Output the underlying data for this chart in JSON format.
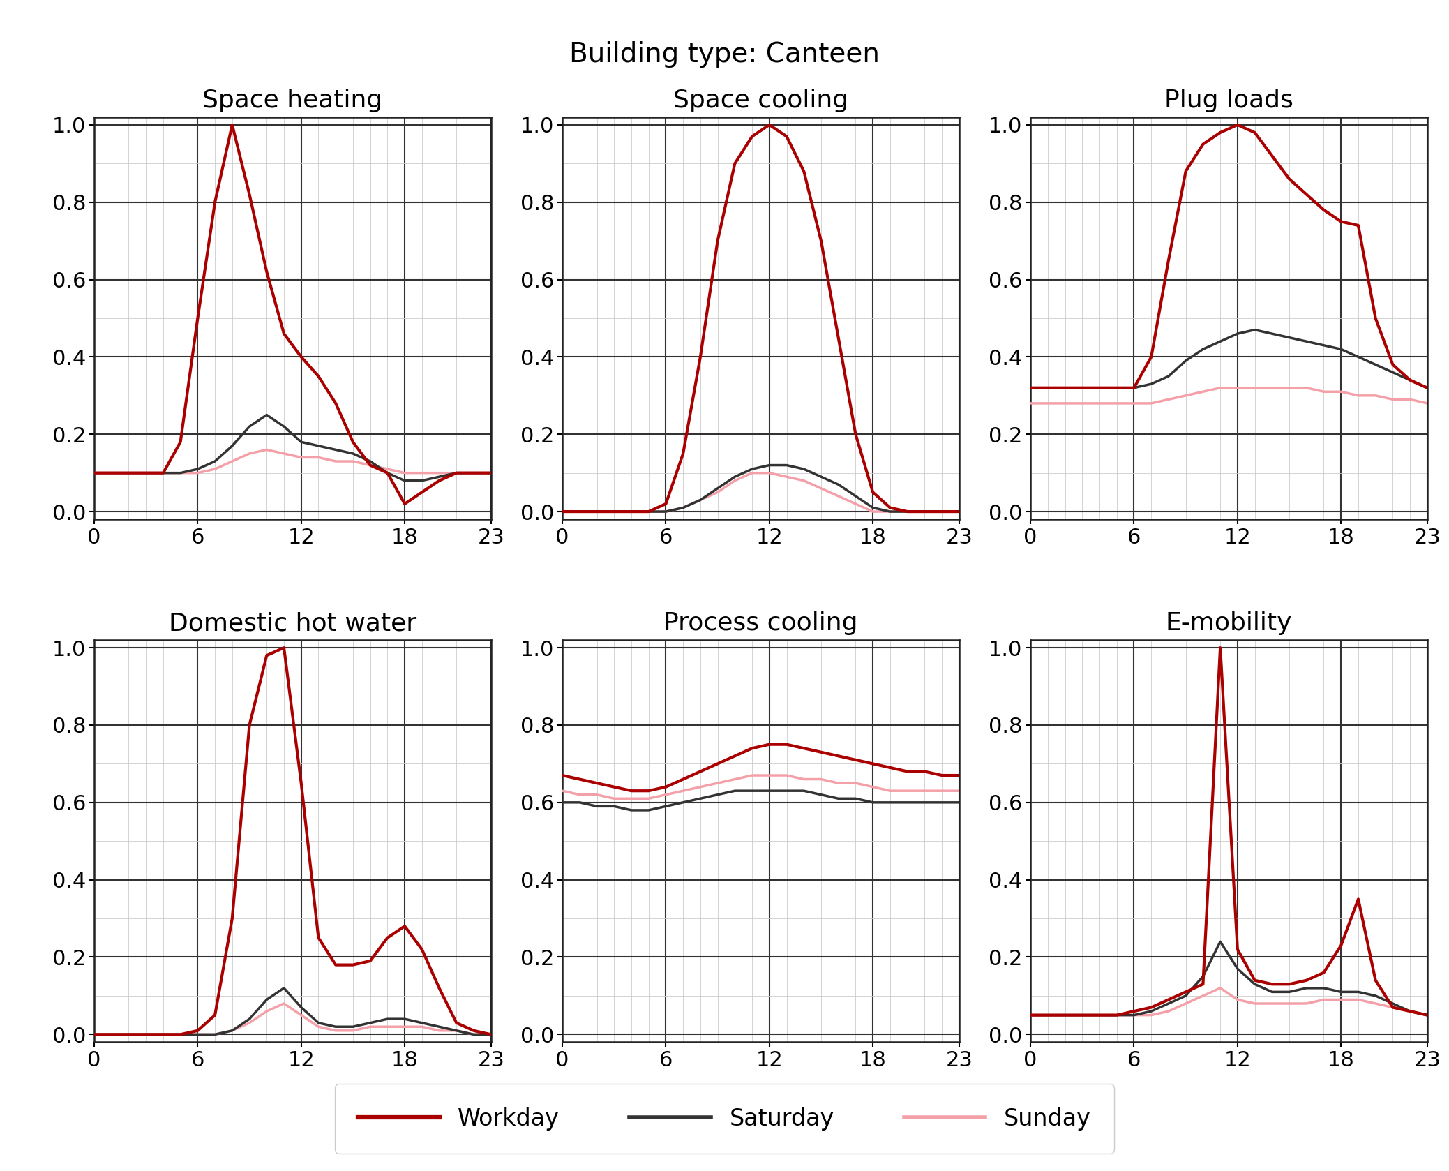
{
  "title": "Building type: Canteen",
  "subplots": [
    {
      "title": "Space heating",
      "workday": [
        0.1,
        0.1,
        0.1,
        0.1,
        0.1,
        0.18,
        0.5,
        0.8,
        1.0,
        0.82,
        0.62,
        0.46,
        0.4,
        0.35,
        0.28,
        0.18,
        0.12,
        0.1,
        0.02,
        0.05,
        0.08,
        0.1,
        0.1,
        0.1
      ],
      "saturday": [
        0.1,
        0.1,
        0.1,
        0.1,
        0.1,
        0.1,
        0.11,
        0.13,
        0.17,
        0.22,
        0.25,
        0.22,
        0.18,
        0.17,
        0.16,
        0.15,
        0.13,
        0.1,
        0.08,
        0.08,
        0.09,
        0.1,
        0.1,
        0.1
      ],
      "sunday": [
        0.1,
        0.1,
        0.1,
        0.1,
        0.1,
        0.1,
        0.1,
        0.11,
        0.13,
        0.15,
        0.16,
        0.15,
        0.14,
        0.14,
        0.13,
        0.13,
        0.12,
        0.11,
        0.1,
        0.1,
        0.1,
        0.1,
        0.1,
        0.1
      ]
    },
    {
      "title": "Space cooling",
      "workday": [
        0.0,
        0.0,
        0.0,
        0.0,
        0.0,
        0.0,
        0.02,
        0.15,
        0.4,
        0.7,
        0.9,
        0.97,
        1.0,
        0.97,
        0.88,
        0.7,
        0.45,
        0.2,
        0.05,
        0.01,
        0.0,
        0.0,
        0.0,
        0.0
      ],
      "saturday": [
        0.0,
        0.0,
        0.0,
        0.0,
        0.0,
        0.0,
        0.0,
        0.01,
        0.03,
        0.06,
        0.09,
        0.11,
        0.12,
        0.12,
        0.11,
        0.09,
        0.07,
        0.04,
        0.01,
        0.0,
        0.0,
        0.0,
        0.0,
        0.0
      ],
      "sunday": [
        0.0,
        0.0,
        0.0,
        0.0,
        0.0,
        0.0,
        0.0,
        0.01,
        0.03,
        0.05,
        0.08,
        0.1,
        0.1,
        0.09,
        0.08,
        0.06,
        0.04,
        0.02,
        0.0,
        0.0,
        0.0,
        0.0,
        0.0,
        0.0
      ]
    },
    {
      "title": "Plug loads",
      "workday": [
        0.32,
        0.32,
        0.32,
        0.32,
        0.32,
        0.32,
        0.32,
        0.4,
        0.65,
        0.88,
        0.95,
        0.98,
        1.0,
        0.98,
        0.92,
        0.86,
        0.82,
        0.78,
        0.75,
        0.74,
        0.5,
        0.38,
        0.34,
        0.32
      ],
      "saturday": [
        0.32,
        0.32,
        0.32,
        0.32,
        0.32,
        0.32,
        0.32,
        0.33,
        0.35,
        0.39,
        0.42,
        0.44,
        0.46,
        0.47,
        0.46,
        0.45,
        0.44,
        0.43,
        0.42,
        0.4,
        0.38,
        0.36,
        0.34,
        0.32
      ],
      "sunday": [
        0.28,
        0.28,
        0.28,
        0.28,
        0.28,
        0.28,
        0.28,
        0.28,
        0.29,
        0.3,
        0.31,
        0.32,
        0.32,
        0.32,
        0.32,
        0.32,
        0.32,
        0.31,
        0.31,
        0.3,
        0.3,
        0.29,
        0.29,
        0.28
      ]
    },
    {
      "title": "Domestic hot water",
      "workday": [
        0.0,
        0.0,
        0.0,
        0.0,
        0.0,
        0.0,
        0.01,
        0.05,
        0.3,
        0.8,
        0.98,
        1.0,
        0.65,
        0.25,
        0.18,
        0.18,
        0.19,
        0.25,
        0.28,
        0.22,
        0.12,
        0.03,
        0.01,
        0.0
      ],
      "saturday": [
        0.0,
        0.0,
        0.0,
        0.0,
        0.0,
        0.0,
        0.0,
        0.0,
        0.01,
        0.04,
        0.09,
        0.12,
        0.07,
        0.03,
        0.02,
        0.02,
        0.03,
        0.04,
        0.04,
        0.03,
        0.02,
        0.01,
        0.0,
        0.0
      ],
      "sunday": [
        0.0,
        0.0,
        0.0,
        0.0,
        0.0,
        0.0,
        0.0,
        0.0,
        0.01,
        0.03,
        0.06,
        0.08,
        0.05,
        0.02,
        0.01,
        0.01,
        0.02,
        0.02,
        0.02,
        0.02,
        0.01,
        0.01,
        0.0,
        0.0
      ]
    },
    {
      "title": "Process cooling",
      "workday": [
        0.67,
        0.66,
        0.65,
        0.64,
        0.63,
        0.63,
        0.64,
        0.66,
        0.68,
        0.7,
        0.72,
        0.74,
        0.75,
        0.75,
        0.74,
        0.73,
        0.72,
        0.71,
        0.7,
        0.69,
        0.68,
        0.68,
        0.67,
        0.67
      ],
      "saturday": [
        0.6,
        0.6,
        0.59,
        0.59,
        0.58,
        0.58,
        0.59,
        0.6,
        0.61,
        0.62,
        0.63,
        0.63,
        0.63,
        0.63,
        0.63,
        0.62,
        0.61,
        0.61,
        0.6,
        0.6,
        0.6,
        0.6,
        0.6,
        0.6
      ],
      "sunday": [
        0.63,
        0.62,
        0.62,
        0.61,
        0.61,
        0.61,
        0.62,
        0.63,
        0.64,
        0.65,
        0.66,
        0.67,
        0.67,
        0.67,
        0.66,
        0.66,
        0.65,
        0.65,
        0.64,
        0.63,
        0.63,
        0.63,
        0.63,
        0.63
      ]
    },
    {
      "title": "E-mobility",
      "workday": [
        0.05,
        0.05,
        0.05,
        0.05,
        0.05,
        0.05,
        0.06,
        0.07,
        0.09,
        0.11,
        0.13,
        1.0,
        0.22,
        0.14,
        0.13,
        0.13,
        0.14,
        0.16,
        0.23,
        0.35,
        0.14,
        0.07,
        0.06,
        0.05
      ],
      "saturday": [
        0.05,
        0.05,
        0.05,
        0.05,
        0.05,
        0.05,
        0.05,
        0.06,
        0.08,
        0.1,
        0.15,
        0.24,
        0.17,
        0.13,
        0.11,
        0.11,
        0.12,
        0.12,
        0.11,
        0.11,
        0.1,
        0.08,
        0.06,
        0.05
      ],
      "sunday": [
        0.05,
        0.05,
        0.05,
        0.05,
        0.05,
        0.05,
        0.05,
        0.05,
        0.06,
        0.08,
        0.1,
        0.12,
        0.09,
        0.08,
        0.08,
        0.08,
        0.08,
        0.09,
        0.09,
        0.09,
        0.08,
        0.07,
        0.06,
        0.05
      ]
    }
  ],
  "x": [
    0,
    1,
    2,
    3,
    4,
    5,
    6,
    7,
    8,
    9,
    10,
    11,
    12,
    13,
    14,
    15,
    16,
    17,
    18,
    19,
    20,
    21,
    22,
    23
  ],
  "xticks": [
    0,
    6,
    12,
    18,
    23
  ],
  "yticks": [
    0.0,
    0.2,
    0.4,
    0.6,
    0.8,
    1.0
  ],
  "ylim": [
    -0.02,
    1.02
  ],
  "workday_color": "#aa0000",
  "saturday_color": "#333333",
  "sunday_color": "#f4a0a8",
  "workday_lw": 3.0,
  "saturday_lw": 2.5,
  "sunday_lw": 2.5,
  "legend_labels": [
    "Workday",
    "Saturday",
    "Sunday"
  ],
  "title_fontsize": 28,
  "subplot_title_fontsize": 26,
  "tick_fontsize": 22,
  "legend_fontsize": 24,
  "background_color": "#ffffff",
  "minor_grid_color": "#cccccc",
  "major_grid_color": "#333333",
  "minor_grid_lw": 0.6,
  "major_grid_lw": 1.5
}
